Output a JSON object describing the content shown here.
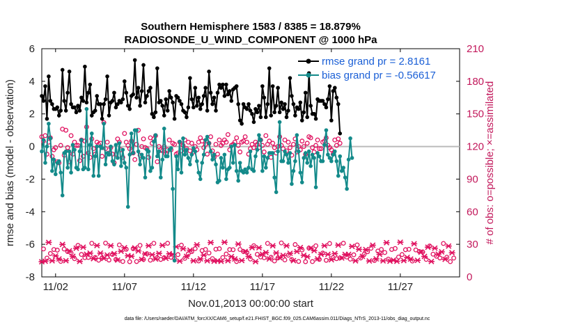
{
  "chart_data": {
    "type": "line",
    "title_line1": "Southern Hemisphere 1583 / 8385 = 18.879%",
    "title_line2": "RADIOSONDE_U_WIND_COMPONENT @ 1000 hPa",
    "ylabel_left": "rmse and bias (model - observation)",
    "ylabel_right": "# of obs: o=possible; ×=assimilated",
    "xlabel": "Nov.01,2013 00:00:00 start",
    "footnote": "data file: /Users/raeder/DAI/ATM_forcXX/CAM6_setup/f.e21.FHIST_BGC.f09_025.CAM6assim.011/Diags_NTrS_2013-11/obs_diag_output.nc",
    "x_range": [
      0,
      30.3
    ],
    "ylim_left": [
      -8,
      6
    ],
    "ylim_right": [
      0,
      210
    ],
    "x_ticks": [
      {
        "value": 1,
        "label": "11/02"
      },
      {
        "value": 6,
        "label": "11/07"
      },
      {
        "value": 11,
        "label": "11/12"
      },
      {
        "value": 16,
        "label": "11/17"
      },
      {
        "value": 21,
        "label": "11/22"
      },
      {
        "value": 26,
        "label": "11/27"
      }
    ],
    "y_ticks_left": [
      {
        "value": 6,
        "label": "6"
      },
      {
        "value": 4,
        "label": "4"
      },
      {
        "value": 2,
        "label": "2"
      },
      {
        "value": 0,
        "label": "0"
      },
      {
        "value": -2,
        "label": "-2"
      },
      {
        "value": -4,
        "label": "-4"
      },
      {
        "value": -6,
        "label": "-6"
      },
      {
        "value": -8,
        "label": "-8"
      }
    ],
    "y_ticks_right": [
      {
        "value": 210,
        "label": "210"
      },
      {
        "value": 180,
        "label": "180"
      },
      {
        "value": 150,
        "label": "150"
      },
      {
        "value": 120,
        "label": "120"
      },
      {
        "value": 90,
        "label": "90"
      },
      {
        "value": 60,
        "label": "60"
      },
      {
        "value": 30,
        "label": "30"
      },
      {
        "value": 0,
        "label": "0"
      }
    ],
    "series": [
      {
        "name": "rmse",
        "legend": "rmse grand pr = 2.8161",
        "color": "#000000",
        "axis": "left",
        "marker": "dot",
        "values": [
          3.1,
          2.8,
          3.7,
          1.7,
          4.3,
          2.8,
          2.6,
          2.3,
          2.3,
          2.4,
          1.9,
          2.2,
          4.7,
          2.8,
          2.2,
          3.3,
          4.6,
          2.6,
          2.4,
          2.4,
          2.1,
          2.5,
          2.2,
          3.0,
          2.8,
          4.9,
          2.7,
          3.3,
          3.8,
          1.9,
          2.1,
          2.2,
          3.1,
          2.6,
          2.6,
          1.7,
          2.6,
          2.9,
          4.3,
          1.9,
          2.7,
          2.8,
          3.3,
          2.4,
          2.6,
          2.8,
          2.7,
          2.9,
          4.0,
          3.3,
          2.5,
          2.3,
          3.1,
          3.2,
          5.3,
          3.0,
          3.6,
          2.5,
          3.4,
          5.0,
          2.7,
          3.1,
          3.4,
          3.6,
          2.0,
          1.8,
          2.1,
          4.8,
          2.7,
          2.8,
          2.5,
          1.9,
          2.9,
          2.2,
          3.4,
          3.0,
          2.7,
          1.7,
          3.1,
          3.0,
          2.8,
          2.6,
          2.2,
          2.1,
          1.8,
          2.4,
          4.2,
          2.9,
          2.4,
          3.6,
          2.5,
          3.0,
          2.3,
          2.6,
          3.1,
          3.6,
          2.2,
          4.6,
          3.3,
          2.6,
          3.0,
          2.2,
          3.3,
          3.8,
          3.6,
          3.8,
          3.1,
          3.8,
          3.2,
          3.4,
          2.8,
          3.5,
          3.6,
          3.7,
          2.6,
          1.6,
          1.4,
          2.6,
          2.4,
          2.3,
          2.6,
          2.2,
          2.0,
          1.5,
          2.3,
          2.1,
          2.5,
          1.8,
          3.7,
          3.0,
          1.8,
          2.6,
          4.8,
          1.9,
          3.7,
          2.1,
          2.5,
          3.6,
          2.1,
          2.7,
          2.3,
          2.6,
          1.8,
          2.2,
          4.2,
          3.1,
          2.6,
          1.9,
          2.4,
          2.3,
          2.7,
          1.6,
          2.1,
          3.3,
          1.8,
          4.5,
          2.5,
          2.0,
          2.0,
          1.7,
          2.9,
          2.8,
          2.8,
          2.8,
          2.6,
          2.4,
          2.9,
          3.7,
          1.6,
          3.4,
          3.6,
          3.0,
          2.6,
          0.8
        ],
        "values_note": "first value at day 0.0, step 0.125 days (3-hourly)"
      },
      {
        "name": "bias",
        "legend": "bias grand pr = -0.56617",
        "color": "#138a8a",
        "axis": "left",
        "marker": "dot",
        "values": [
          -0.3,
          0.4,
          -1.0,
          0.0,
          1.4,
          0.5,
          -1.5,
          -0.8,
          -1.7,
          -1.0,
          -0.9,
          -1.6,
          -3.0,
          -0.4,
          -0.3,
          -1.3,
          -0.3,
          -1.6,
          0.1,
          -0.2,
          -1.3,
          -1.4,
          -0.3,
          0.4,
          -1.4,
          -1.3,
          2.3,
          -1.4,
          0.1,
          0.8,
          -1.8,
          -0.6,
          0.0,
          -1.8,
          0.0,
          -0.1,
          1.4,
          -1.1,
          -0.4,
          -0.5,
          0.0,
          -0.9,
          -1.1,
          0.1,
          -0.7,
          0.2,
          -1.2,
          -0.2,
          -1.0,
          -1.3,
          -3.7,
          -0.5,
          0.8,
          -0.4,
          1.0,
          1.0,
          -0.3,
          -1.1,
          -0.5,
          -0.7,
          -1.9,
          -0.2,
          -0.3,
          -1.5,
          -1.3,
          0.3,
          0.7,
          -0.6,
          -0.3,
          -1.9,
          -0.8,
          1.1,
          -0.6,
          -0.6,
          -0.2,
          -0.1,
          -2.6,
          -7.0,
          -0.6,
          -1.4,
          0.3,
          -1.6,
          0.5,
          -0.5,
          -0.2,
          -0.7,
          -1.1,
          -0.5,
          -0.1,
          -0.3,
          -0.9,
          -1.6,
          -2.0,
          -1.0,
          -0.5,
          0.4,
          0.6,
          0.2,
          -0.3,
          -0.8,
          -0.5,
          -1.1,
          -2.2,
          -2.1,
          -0.7,
          -1.3,
          -0.5,
          -2.0,
          -1.4,
          -1.3,
          0.0,
          -1.0,
          0.1,
          -1.5,
          -2.1,
          -1.0,
          -1.5,
          -1.6,
          -1.4,
          -1.6,
          -1.3,
          -0.3,
          -1.4,
          -1.5,
          -0.6,
          -0.2,
          0.7,
          0.4,
          -1.5,
          -0.6,
          -1.3,
          -0.7,
          -0.4,
          -0.4,
          -0.4,
          -1.9,
          -2.8,
          -0.3,
          1.5,
          -0.9,
          -0.9,
          -0.3,
          -0.5,
          -1.0,
          -0.4,
          -2.3,
          -1.5,
          -0.9,
          0.7,
          -0.3,
          -1.6,
          -2.2,
          -0.7,
          -0.4,
          -1.0,
          -0.3,
          -1.2,
          -0.5,
          -0.7,
          -2.5,
          -0.4,
          -0.6,
          -0.9,
          -0.9,
          0.1,
          1.0,
          -0.5,
          -0.7,
          -0.9,
          -0.5,
          -0.3,
          -0.9,
          -1.8,
          -0.6,
          -1.5,
          -1.3,
          -1.9,
          -2.6,
          -0.8,
          0.5,
          -0.7
        ]
      }
    ],
    "obs_possible_values_right_axis": [
      129,
      125,
      130,
      113,
      124,
      128,
      111,
      117,
      119,
      106,
      105,
      121,
      136,
      112,
      135,
      119,
      106,
      130,
      113,
      124,
      121,
      121,
      107,
      126,
      111,
      125,
      138,
      114,
      110,
      127,
      118,
      113,
      124,
      122,
      123,
      111,
      142,
      118,
      124,
      114,
      119,
      113,
      105,
      113,
      127,
      124,
      117,
      110,
      132,
      124,
      121,
      118,
      125,
      114,
      108,
      122,
      135,
      112,
      120,
      127,
      119,
      118,
      110,
      128,
      123,
      127,
      130,
      106,
      120,
      117,
      116,
      120,
      113,
      117,
      126,
      117,
      123,
      122,
      113,
      114,
      124,
      116,
      121,
      126,
      118,
      124,
      116,
      123,
      115,
      120,
      117,
      124,
      128,
      125,
      119,
      122,
      113,
      123,
      129,
      116,
      110,
      122,
      113,
      126,
      121,
      123,
      126,
      124,
      131,
      117,
      121,
      122,
      124,
      128,
      121,
      115,
      124,
      125,
      129,
      124,
      113,
      118,
      122,
      119,
      124,
      122,
      119,
      126,
      121,
      115,
      130,
      122,
      125,
      110,
      123,
      119,
      114,
      120,
      129,
      121,
      118,
      126,
      116,
      124,
      119,
      112,
      122,
      127,
      115,
      120,
      117,
      125,
      120,
      113,
      123,
      129,
      128,
      119,
      115,
      121,
      126,
      118,
      118,
      124,
      125,
      128,
      121,
      119,
      117,
      113,
      126,
      121,
      127,
      123
    ]
  }
}
